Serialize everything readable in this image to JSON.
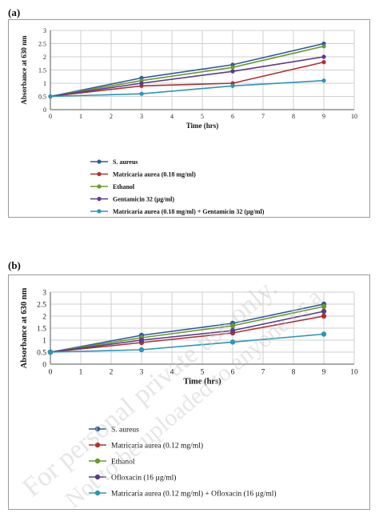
{
  "panel_labels": [
    "(a)",
    "(b)"
  ],
  "watermark": {
    "line1": "For personal private use only.",
    "line2": "Not to be uploaded to anyone or a"
  },
  "colors": {
    "s_aureus": "#2e5c99",
    "matricaria": "#b03030",
    "ethanol": "#6a9a2a",
    "antibiotic": "#5b3a8c",
    "combination": "#2a96b8"
  },
  "chart_data": [
    {
      "type": "line",
      "panel": "(a)",
      "title": "",
      "xlabel": "Time (hrs)",
      "ylabel": "Absorbance at 630 nm",
      "xlim": [
        0,
        10
      ],
      "ylim": [
        0,
        3
      ],
      "x_ticks": [
        0,
        1,
        2,
        3,
        4,
        5,
        6,
        7,
        8,
        9,
        10
      ],
      "y_ticks": [
        0,
        0.5,
        1,
        1.5,
        2,
        2.5,
        3
      ],
      "y_tick_labels": [
        "0",
        "0.5",
        "1",
        "1.5",
        "2",
        "2.5",
        "3"
      ],
      "grid": true,
      "legend_position": "bottom",
      "x": [
        0,
        3,
        6,
        9
      ],
      "series": [
        {
          "name": "S. aureus",
          "values": [
            0.5,
            1.2,
            1.7,
            2.5
          ],
          "color": "#2e5c99"
        },
        {
          "name": "Matricaria aurea (0.18 mg/ml)",
          "values": [
            0.5,
            0.9,
            1.0,
            1.8
          ],
          "color": "#b03030"
        },
        {
          "name": "Ethanol",
          "values": [
            0.5,
            1.1,
            1.6,
            2.4
          ],
          "color": "#6a9a2a"
        },
        {
          "name": "Gentamicin 32 (µg/ml)",
          "values": [
            0.5,
            1.0,
            1.45,
            2.0
          ],
          "color": "#5b3a8c"
        },
        {
          "name": "Matricaria aurea (0.18 mg/ml) + Gentamicin 32 (µg/ml)",
          "values": [
            0.5,
            0.6,
            0.9,
            1.1
          ],
          "color": "#2a96b8"
        }
      ]
    },
    {
      "type": "line",
      "panel": "(b)",
      "title": "",
      "xlabel": "Time (hrs)",
      "ylabel": "Absorbance at 630 nm",
      "xlim": [
        0,
        10
      ],
      "ylim": [
        0,
        3
      ],
      "x_ticks": [
        0,
        1,
        2,
        3,
        4,
        5,
        6,
        7,
        8,
        9,
        10
      ],
      "y_ticks": [
        0,
        0.5,
        1,
        1.5,
        2,
        2.5,
        3
      ],
      "y_tick_labels": [
        "0",
        "0.5",
        "1",
        "1.5",
        "2",
        "2.5",
        "3"
      ],
      "grid": true,
      "legend_position": "bottom",
      "x": [
        0,
        3,
        6,
        9
      ],
      "series": [
        {
          "name": "S. aureus",
          "values": [
            0.5,
            1.2,
            1.7,
            2.5
          ],
          "color": "#2e5c99"
        },
        {
          "name": "Matricaria aurea (0.12 mg/ml)",
          "values": [
            0.5,
            0.9,
            1.3,
            2.0
          ],
          "color": "#b03030"
        },
        {
          "name": "Ethanol",
          "values": [
            0.5,
            1.1,
            1.6,
            2.4
          ],
          "color": "#6a9a2a"
        },
        {
          "name": "Ofloxacin (16 µg/ml)",
          "values": [
            0.5,
            1.0,
            1.4,
            2.2
          ],
          "color": "#5b3a8c"
        },
        {
          "name": "Matricaria aurea (0.12 mg/ml) + Ofloxacin (16 µg/ml)",
          "values": [
            0.5,
            0.6,
            0.92,
            1.25
          ],
          "color": "#2a96b8"
        }
      ]
    }
  ]
}
